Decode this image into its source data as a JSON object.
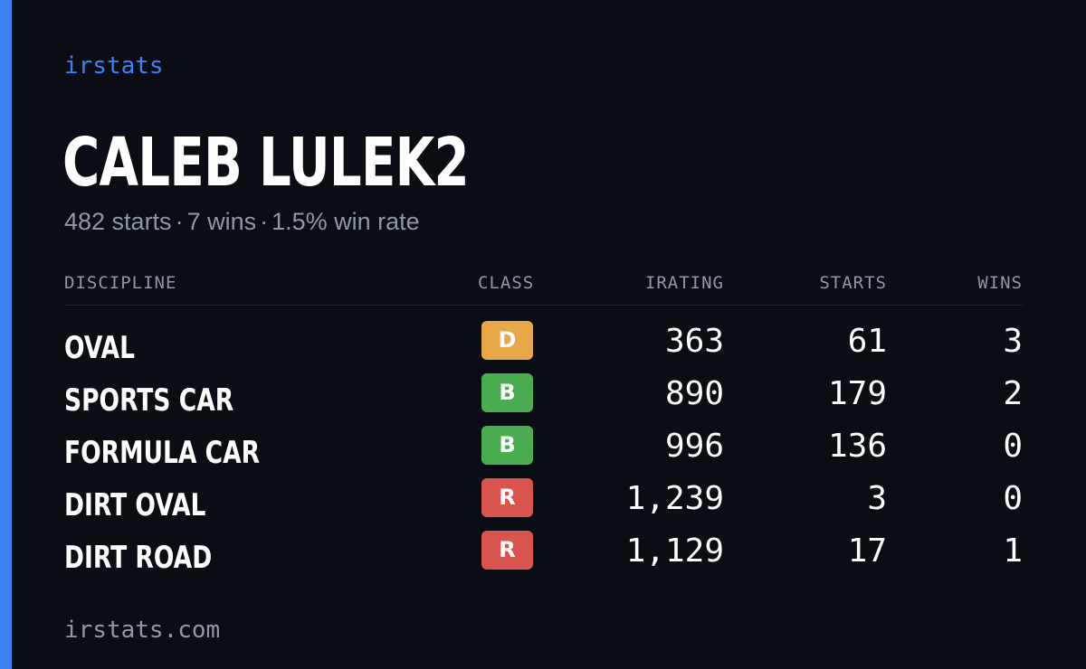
{
  "brand": "irstats",
  "driver": {
    "name": "CALEB LULEK2"
  },
  "summary": {
    "starts": "482 starts",
    "wins": "7 wins",
    "win_rate": "1.5% win rate",
    "separator": "·"
  },
  "table": {
    "headers": {
      "discipline": "DISCIPLINE",
      "class": "CLASS",
      "irating": "IRATING",
      "starts": "STARTS",
      "wins": "WINS"
    },
    "rows": [
      {
        "discipline": "OVAL",
        "class": "D",
        "class_color": "#e8a84a",
        "irating": "363",
        "starts": "61",
        "wins": "3"
      },
      {
        "discipline": "SPORTS CAR",
        "class": "B",
        "class_color": "#4aad52",
        "irating": "890",
        "starts": "179",
        "wins": "2"
      },
      {
        "discipline": "FORMULA CAR",
        "class": "B",
        "class_color": "#4aad52",
        "irating": "996",
        "starts": "136",
        "wins": "0"
      },
      {
        "discipline": "DIRT OVAL",
        "class": "R",
        "class_color": "#d9534f",
        "irating": "1,239",
        "starts": "3",
        "wins": "0"
      },
      {
        "discipline": "DIRT ROAD",
        "class": "R",
        "class_color": "#d9534f",
        "irating": "1,129",
        "starts": "17",
        "wins": "1"
      }
    ]
  },
  "footer": {
    "url": "irstats.com"
  },
  "colors": {
    "background": "#0b0d14",
    "accent": "#3b82f6",
    "muted_text": "#8f98a8"
  }
}
